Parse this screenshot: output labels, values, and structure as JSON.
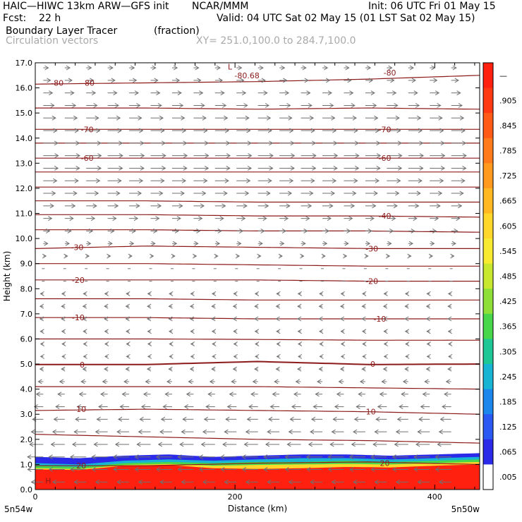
{
  "header": {
    "model": "HAIC—HIWC 13km ARW—GFS init",
    "org": "NCAR/MMM",
    "init": "Init: 06 UTC Fri 01 May 15",
    "fcst": "Fcst:    22 h",
    "valid": "Valid: 04 UTC Sat 02 May 15 (01 LST Sat 02 May 15)",
    "field": "Boundary Layer Tracer",
    "units": "(fraction)",
    "overlay": "Circulation vectors",
    "xy": "XY= 251.0,100.0 to 284.7,100.0"
  },
  "chart_data": {
    "type": "heatmap",
    "title": "Boundary Layer Tracer",
    "xlabel": "Distance (km)",
    "ylabel": "Height (km)",
    "xlim": [
      0,
      445
    ],
    "ylim": [
      0,
      17
    ],
    "xticks": [
      0,
      200,
      400
    ],
    "yticks": [
      "0.0",
      "1.0",
      "2.0",
      "3.0",
      "4.0",
      "5.0",
      "6.0",
      "7.0",
      "8.0",
      "9.0",
      "10.0",
      "11.0",
      "12.0",
      "13.0",
      "14.0",
      "15.0",
      "16.0",
      "17.0"
    ],
    "x_endpoints": {
      "left": "5n54w",
      "right": "5n50w"
    },
    "colorbar": {
      "labels": [
        "—",
        ".905",
        ".845",
        ".785",
        ".725",
        ".665",
        ".605",
        ".545",
        ".485",
        ".425",
        ".365",
        ".305",
        ".245",
        ".185",
        ".125",
        ".065",
        ".005"
      ],
      "colors": [
        "#ff2010",
        "#ff3a12",
        "#ff5a16",
        "#ff7a1a",
        "#ff9a1e",
        "#ffb822",
        "#ffd62a",
        "#f8ea30",
        "#c8e830",
        "#8ee038",
        "#48d64a",
        "#1ec896",
        "#18b4d4",
        "#1c86ec",
        "#2a58f2",
        "#2a2ae8",
        "#ffffff"
      ]
    },
    "tracer_region": {
      "levels": [
        {
          "color": "#2a2ae8",
          "top_km": [
            1.3,
            1.25,
            1.35,
            1.4,
            1.3,
            1.35,
            1.4,
            1.4,
            1.35,
            1.4,
            1.45
          ]
        },
        {
          "color": "#18b4d4",
          "top_km": [
            1.05,
            1.0,
            1.15,
            1.2,
            1.15,
            1.2,
            1.25,
            1.25,
            1.2,
            1.25,
            1.3
          ]
        },
        {
          "color": "#48d64a",
          "top_km": [
            0.95,
            0.9,
            1.05,
            1.1,
            1.05,
            1.1,
            1.1,
            1.15,
            1.1,
            1.15,
            1.2
          ]
        },
        {
          "color": "#ffd62a",
          "top_km": [
            0.85,
            0.82,
            0.98,
            1.02,
            0.95,
            0.98,
            1.0,
            1.02,
            1.0,
            1.05,
            1.1
          ]
        },
        {
          "color": "#ff2010",
          "top_km": [
            0.8,
            0.78,
            0.95,
            0.98,
            0.85,
            0.82,
            0.85,
            0.9,
            0.88,
            0.95,
            1.0
          ]
        }
      ]
    },
    "contours": {
      "color": "#8b1a1a",
      "lines": [
        {
          "value": "-80",
          "h": [
            16.15,
            16.2,
            16.25,
            16.35,
            16.5
          ]
        },
        {
          "value": "",
          "h": [
            15.2,
            15.2,
            15.15,
            15.2,
            15.15
          ]
        },
        {
          "value": "-70",
          "h": [
            14.35,
            14.35,
            14.35,
            14.35,
            14.35
          ]
        },
        {
          "value": "",
          "h": [
            13.8,
            13.8,
            13.8,
            13.8,
            13.8
          ]
        },
        {
          "value": "-60",
          "h": [
            13.2,
            13.2,
            13.2,
            13.2,
            13.2
          ]
        },
        {
          "value": "",
          "h": [
            12.65,
            12.65,
            12.65,
            12.65,
            12.65
          ]
        },
        {
          "value": "",
          "h": [
            12.05,
            12.05,
            12.05,
            12.05,
            12.05
          ]
        },
        {
          "value": "",
          "h": [
            11.5,
            11.5,
            11.45,
            11.45,
            11.45
          ]
        },
        {
          "value": "-40",
          "h": [
            10.95,
            10.95,
            10.9,
            10.9,
            10.85
          ]
        },
        {
          "value": "",
          "h": [
            10.35,
            10.35,
            10.3,
            10.3,
            10.25
          ]
        },
        {
          "value": "-30",
          "h": [
            9.6,
            9.7,
            9.65,
            9.6,
            9.6
          ]
        },
        {
          "value": "",
          "h": [
            9.0,
            9.0,
            8.95,
            8.9,
            8.9
          ]
        },
        {
          "value": "-20",
          "h": [
            8.35,
            8.35,
            8.35,
            8.3,
            8.3
          ]
        },
        {
          "value": "",
          "h": [
            7.6,
            7.6,
            7.55,
            7.55,
            7.55
          ]
        },
        {
          "value": "-10",
          "h": [
            6.85,
            6.85,
            6.8,
            6.8,
            6.8
          ]
        },
        {
          "value": "",
          "h": [
            6.0,
            6.0,
            5.98,
            5.95,
            5.95
          ]
        },
        {
          "value": "0",
          "h": [
            4.98,
            4.98,
            5.1,
            4.98,
            5.0
          ]
        },
        {
          "value": "",
          "h": [
            4.1,
            4.1,
            4.1,
            4.05,
            4.0
          ]
        },
        {
          "value": "10",
          "h": [
            3.15,
            3.2,
            3.15,
            3.1,
            3.0
          ]
        },
        {
          "value": "",
          "h": [
            2.2,
            2.1,
            2.0,
            1.95,
            1.85
          ]
        },
        {
          "value": "20",
          "h": [
            0.95,
            0.95,
            1.05,
            1.1,
            1.0
          ]
        }
      ],
      "labels": [
        {
          "text": "-80",
          "x_km": 22,
          "h": 16.2
        },
        {
          "text": "-80",
          "x_km": 53,
          "h": 16.2
        },
        {
          "text": "-80.68",
          "x_km": 212,
          "h": 16.5
        },
        {
          "text": "L",
          "x_km": 195,
          "h": 16.85
        },
        {
          "text": "-80",
          "x_km": 355,
          "h": 16.6
        },
        {
          "text": "-70",
          "x_km": 52,
          "h": 14.35
        },
        {
          "text": "-70",
          "x_km": 350,
          "h": 14.35
        },
        {
          "text": "-60",
          "x_km": 52,
          "h": 13.2
        },
        {
          "text": "-60",
          "x_km": 350,
          "h": 13.2
        },
        {
          "text": "-40",
          "x_km": 350,
          "h": 10.9
        },
        {
          "text": "-30",
          "x_km": 42,
          "h": 9.65
        },
        {
          "text": "-30",
          "x_km": 337,
          "h": 9.6
        },
        {
          "text": "-20",
          "x_km": 43,
          "h": 8.35
        },
        {
          "text": "-20",
          "x_km": 337,
          "h": 8.3
        },
        {
          "text": "-10",
          "x_km": 43,
          "h": 6.85
        },
        {
          "text": "-10",
          "x_km": 345,
          "h": 6.8
        },
        {
          "text": "0",
          "x_km": 47,
          "h": 4.98
        },
        {
          "text": "0",
          "x_km": 338,
          "h": 5.0
        },
        {
          "text": "10",
          "x_km": 46,
          "h": 3.2
        },
        {
          "text": "10",
          "x_km": 336,
          "h": 3.1
        },
        {
          "text": "20",
          "x_km": 46,
          "h": 0.95
        },
        {
          "text": "20",
          "x_km": 350,
          "h": 1.05
        },
        {
          "text": "H",
          "x_km": 13,
          "h": 0.35
        }
      ]
    },
    "vectors": {
      "color": "#707070",
      "u_profile": [
        {
          "h": 0.3,
          "u": -0.7
        },
        {
          "h": 1.0,
          "u": -1.0
        },
        {
          "h": 2.0,
          "u": -0.75
        },
        {
          "h": 3.0,
          "u": -0.6
        },
        {
          "h": 4.0,
          "u": -0.35
        },
        {
          "h": 5.0,
          "u": -0.15
        },
        {
          "h": 6.0,
          "u": -0.15
        },
        {
          "h": 7.0,
          "u": -0.2
        },
        {
          "h": 8.0,
          "u": -0.15
        },
        {
          "h": 9.0,
          "u": 0.1
        },
        {
          "h": 10.0,
          "u": 0.3
        },
        {
          "h": 11.0,
          "u": 0.55
        },
        {
          "h": 12.0,
          "u": 0.75
        },
        {
          "h": 13.0,
          "u": 0.9
        },
        {
          "h": 14.0,
          "u": 0.85
        },
        {
          "h": 15.0,
          "u": 0.7
        },
        {
          "h": 16.0,
          "u": 0.5
        },
        {
          "h": 16.8,
          "u": 0.3
        }
      ]
    }
  }
}
